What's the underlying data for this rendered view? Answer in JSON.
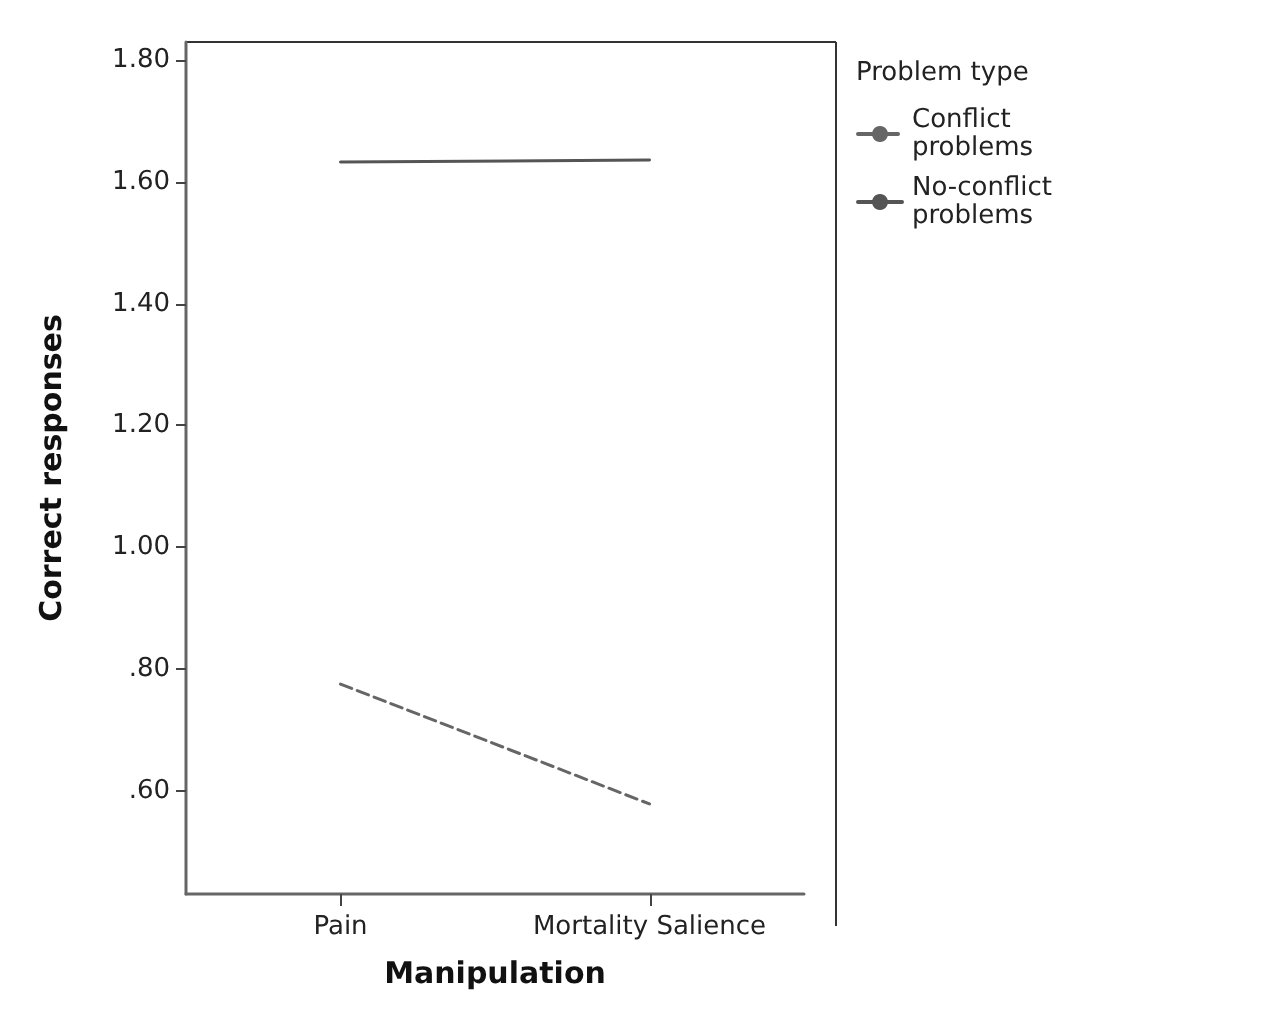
{
  "chart_data": {
    "type": "line",
    "xlabel": "Manipulation",
    "ylabel": "Correct responses",
    "legend_title": "Problem type",
    "categories": [
      "Pain",
      "Mortality Salience"
    ],
    "series": [
      {
        "name": "Conflict problems",
        "color": "#666666",
        "line_style": "dashed",
        "values": [
          0.775,
          0.578
        ]
      },
      {
        "name": "No-conflict problems",
        "color": "#555555",
        "line_style": "solid",
        "values": [
          1.633,
          1.636
        ]
      }
    ],
    "ylim": [
      0.43,
      1.83
    ],
    "yticks": [
      {
        "value": 0.6,
        "label": ".60"
      },
      {
        "value": 0.8,
        "label": ".80"
      },
      {
        "value": 1.0,
        "label": "1.00"
      },
      {
        "value": 1.2,
        "label": "1.20"
      },
      {
        "value": 1.4,
        "label": "1.40"
      },
      {
        "value": 1.6,
        "label": "1.60"
      },
      {
        "value": 1.8,
        "label": "1.80"
      }
    ],
    "legend": "top right",
    "marker": "none",
    "grid": false
  }
}
